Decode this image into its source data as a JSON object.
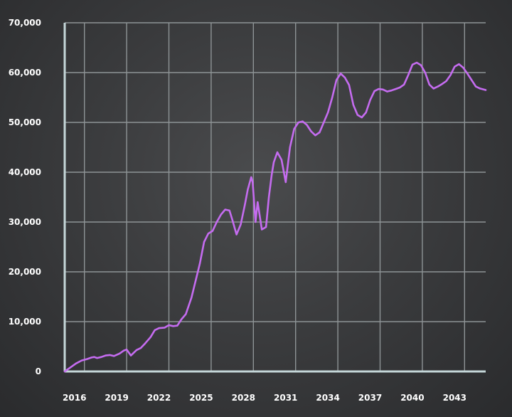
{
  "chart_data": {
    "type": "line",
    "title": "",
    "xlabel": "",
    "ylabel": "",
    "xlim": [
      2014.6,
      2044.5
    ],
    "ylim": [
      0,
      70000
    ],
    "grid": true,
    "legend": "none",
    "x_ticks": [
      {
        "value": 2016,
        "label": "2016"
      },
      {
        "value": 2019,
        "label": "2019"
      },
      {
        "value": 2022,
        "label": "2022"
      },
      {
        "value": 2025,
        "label": "2025"
      },
      {
        "value": 2028,
        "label": "2028"
      },
      {
        "value": 2031,
        "label": "2031"
      },
      {
        "value": 2034,
        "label": "2034"
      },
      {
        "value": 2037,
        "label": "2037"
      },
      {
        "value": 2040,
        "label": "2040"
      },
      {
        "value": 2043,
        "label": "2043"
      }
    ],
    "y_ticks": [
      {
        "value": 0,
        "label": "0"
      },
      {
        "value": 10000,
        "label": "10,000"
      },
      {
        "value": 20000,
        "label": "20,000"
      },
      {
        "value": 30000,
        "label": "30,000"
      },
      {
        "value": 40000,
        "label": "40,000"
      },
      {
        "value": 50000,
        "label": "50,000"
      },
      {
        "value": 60000,
        "label": "60,000"
      },
      {
        "value": 70000,
        "label": "70,000"
      }
    ],
    "series": [
      {
        "color": "#c56cf0",
        "x": [
          2014.6,
          2015.0,
          2015.4,
          2015.8,
          2016.2,
          2016.5,
          2016.7,
          2016.9,
          2017.2,
          2017.5,
          2017.8,
          2018.1,
          2018.5,
          2018.8,
          2019.0,
          2019.3,
          2019.7,
          2020.0,
          2020.3,
          2020.7,
          2021.0,
          2021.3,
          2021.7,
          2022.0,
          2022.3,
          2022.6,
          2022.9,
          2023.2,
          2023.6,
          2023.9,
          2024.2,
          2024.5,
          2024.8,
          2025.1,
          2025.4,
          2025.7,
          2026.0,
          2026.3,
          2026.5,
          2026.8,
          2027.1,
          2027.4,
          2027.6,
          2027.85,
          2027.95,
          2028.15,
          2028.3,
          2028.6,
          2028.9,
          2029.1,
          2029.3,
          2029.45,
          2029.7,
          2030.0,
          2030.3,
          2030.6,
          2030.9,
          2031.2,
          2031.5,
          2031.8,
          2032.1,
          2032.4,
          2032.7,
          2033.0,
          2033.3,
          2033.6,
          2033.9,
          2034.2,
          2034.5,
          2034.8,
          2035.1,
          2035.4,
          2035.7,
          2036.0,
          2036.3,
          2036.6,
          2036.9,
          2037.2,
          2037.5,
          2037.8,
          2038.1,
          2038.4,
          2038.7,
          2039.0,
          2039.3,
          2039.6,
          2039.9,
          2040.2,
          2040.5,
          2040.8,
          2041.1,
          2041.4,
          2041.7,
          2042.0,
          2042.3,
          2042.6,
          2042.9,
          2043.2,
          2043.5,
          2043.8,
          2044.1,
          2044.5
        ],
        "y": [
          0,
          800,
          1600,
          2200,
          2500,
          2800,
          2900,
          2700,
          2900,
          3200,
          3300,
          3100,
          3600,
          4200,
          4400,
          3200,
          4300,
          4700,
          5600,
          6900,
          8300,
          8700,
          8800,
          9300,
          9100,
          9200,
          10500,
          11500,
          14800,
          18200,
          21700,
          26000,
          27700,
          28200,
          30000,
          31500,
          32500,
          32300,
          30500,
          27500,
          29500,
          33500,
          36500,
          39000,
          38000,
          30000,
          34000,
          28500,
          29000,
          35000,
          39500,
          42000,
          44000,
          42500,
          38000,
          45000,
          48700,
          50000,
          50200,
          49500,
          48200,
          47400,
          48000,
          50000,
          52000,
          55000,
          58500,
          59800,
          59000,
          57500,
          53500,
          51500,
          51000,
          52000,
          54500,
          56300,
          56700,
          56600,
          56200,
          56400,
          56700,
          57000,
          57600,
          59500,
          61600,
          62000,
          61500,
          60000,
          57600,
          56800,
          57200,
          57700,
          58300,
          59500,
          61200,
          61700,
          61000,
          59800,
          58500,
          57200,
          56800,
          56500
        ]
      }
    ]
  }
}
